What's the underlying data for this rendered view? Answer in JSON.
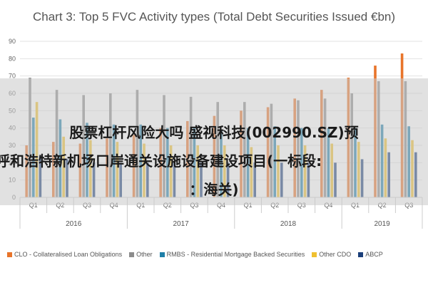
{
  "chart_data": {
    "type": "bar",
    "title": "Chart 3: Top 5 FVC Activity types (Total Debt Securities Issued €bn)",
    "ylim": [
      0,
      90
    ],
    "yticks": [
      0,
      10,
      20,
      30,
      40,
      50,
      60,
      70,
      80,
      90
    ],
    "grid": true,
    "legend_position": "bottom",
    "categories": [
      "Q1",
      "Q2",
      "Q3",
      "Q4",
      "Q1",
      "Q2",
      "Q3",
      "Q4",
      "Q1",
      "Q2",
      "Q3",
      "Q4",
      "Q1",
      "Q2",
      "Q3"
    ],
    "years": [
      {
        "label": "2016",
        "start": 0,
        "count": 4
      },
      {
        "label": "2017",
        "start": 4,
        "count": 4
      },
      {
        "label": "2018",
        "start": 8,
        "count": 4
      },
      {
        "label": "2019",
        "start": 12,
        "count": 3
      }
    ],
    "series": [
      {
        "name": "CLO - Collateralised Loan Obligations",
        "color": "#e8742a",
        "values": [
          30,
          32,
          31,
          34,
          36,
          40,
          44,
          47,
          50,
          52,
          57,
          62,
          69,
          76,
          83
        ]
      },
      {
        "name": "Other",
        "color": "#8c8c8c",
        "values": [
          69,
          62,
          59,
          60,
          62,
          59,
          58,
          55,
          55,
          54,
          56,
          57,
          60,
          67,
          67
        ]
      },
      {
        "name": "RMBS - Residential Mortgage Backed Securities",
        "color": "#1f7fa8",
        "values": [
          46,
          45,
          43,
          42,
          42,
          40,
          40,
          39,
          40,
          41,
          40,
          40,
          40,
          42,
          41
        ]
      },
      {
        "name": "Other CDO",
        "color": "#f0c030",
        "values": [
          55,
          35,
          33,
          32,
          31,
          30,
          30,
          30,
          29,
          30,
          30,
          31,
          32,
          34,
          33
        ]
      },
      {
        "name": "ABCP",
        "color": "#1b3f7a",
        "values": [
          24,
          22,
          20,
          20,
          20,
          20,
          20,
          20,
          20,
          20,
          20,
          20,
          22,
          26,
          26
        ]
      }
    ]
  },
  "overlay": {
    "line1": "股票杠杆风险大吗 盛视科技(002990.SZ)预",
    "line2": "呼和浩特新机场口岸通关设施设备建设项目(一标段:",
    "line3": "：海关)"
  }
}
